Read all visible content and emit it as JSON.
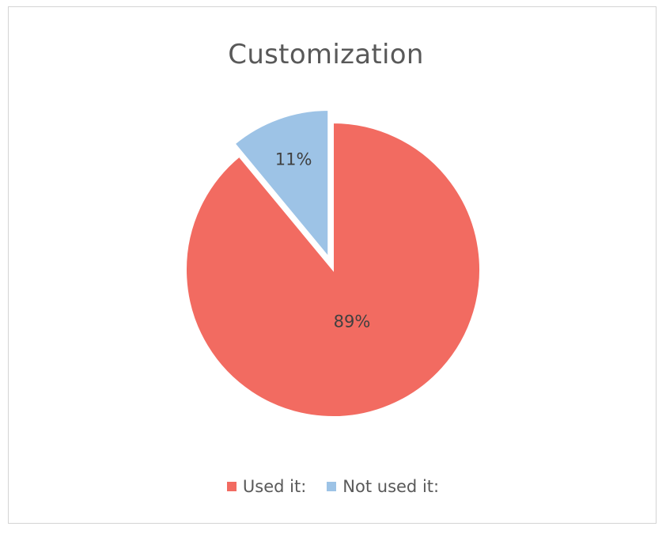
{
  "chart_data": {
    "type": "pie",
    "title": "Customization",
    "series": [
      {
        "name": "",
        "values": [
          89,
          11
        ]
      }
    ],
    "categories": [
      "Used it:",
      "Not used it:"
    ],
    "data_labels": [
      "89%",
      "11%"
    ],
    "colors": [
      "#F26B61",
      "#9DC3E6"
    ],
    "exploded": [
      false,
      true
    ],
    "legend": "bottom-center"
  }
}
